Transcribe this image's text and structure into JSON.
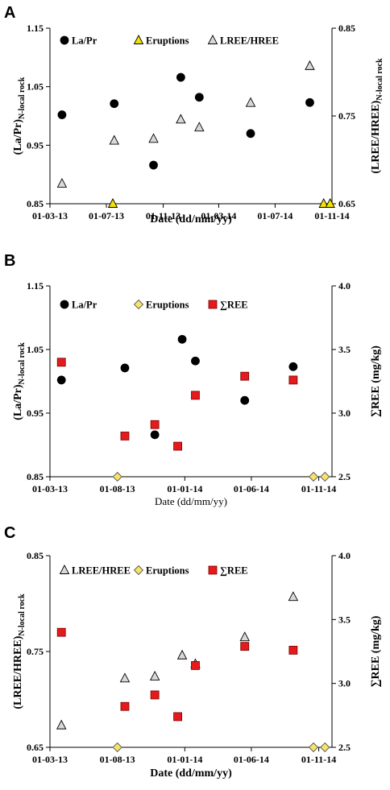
{
  "chart_data": [
    {
      "panel": "A",
      "type": "scatter",
      "xlabel": "Date (dd/mm/yy)",
      "ylabel_main": "(La/Pr)",
      "ylabel_sub": "N-local rock",
      "y2label_main": "(LREE/HREE)",
      "y2label_sub": "N-local rock",
      "xlim": [
        "2013-03-01",
        "2014-11-01"
      ],
      "xticks": [
        "01-03-13",
        "01-07-13",
        "01-11-13",
        "01-03-14",
        "01-07-14",
        "01-11-14"
      ],
      "ylim": [
        0.85,
        1.15
      ],
      "yticks": [
        "0.85",
        "0.95",
        "1.05",
        "1.15"
      ],
      "y2lim": [
        0.65,
        0.85
      ],
      "y2ticks": [
        "0.65",
        "0.75",
        "0.85"
      ],
      "legend": [
        "La/Pr",
        "Eruptions",
        "LREE/HREE"
      ],
      "series": [
        {
          "name": "La/Pr",
          "axis": "left",
          "marker": "circle",
          "color": "#000000",
          "points": [
            [
              "2013-03-27",
              1.002
            ],
            [
              "2013-07-18",
              1.021
            ],
            [
              "2013-10-11",
              0.916
            ],
            [
              "2013-12-09",
              1.066
            ],
            [
              "2014-01-18",
              1.032
            ],
            [
              "2014-05-09",
              0.97
            ],
            [
              "2014-09-14",
              1.023
            ]
          ]
        },
        {
          "name": "Eruptions",
          "axis": "left",
          "marker": "triangle",
          "color": "#f2e200",
          "points": [
            [
              "2013-07-15",
              0.85
            ],
            [
              "2014-10-14",
              0.85
            ],
            [
              "2014-10-28",
              0.85
            ]
          ]
        },
        {
          "name": "LREE/HREE",
          "axis": "right",
          "marker": "triangle",
          "color": "#d9d9d9",
          "points": [
            [
              "2013-03-27",
              0.673
            ],
            [
              "2013-07-18",
              0.722
            ],
            [
              "2013-10-11",
              0.724
            ],
            [
              "2013-12-09",
              0.746
            ],
            [
              "2014-01-18",
              0.737
            ],
            [
              "2014-05-09",
              0.765
            ],
            [
              "2014-09-14",
              0.807
            ]
          ]
        }
      ]
    },
    {
      "panel": "B",
      "type": "scatter",
      "xlabel": "Date (dd/mm/yy)",
      "ylabel_main": "(La/Pr)",
      "ylabel_sub": "N-local rock",
      "y2label_main": "∑REE (mg/kg)",
      "xlim": [
        "2013-03-01",
        "2014-12-01"
      ],
      "xticks": [
        "01-03-13",
        "01-08-13",
        "01-01-14",
        "01-06-14",
        "01-11-14"
      ],
      "ylim": [
        0.85,
        1.15
      ],
      "yticks": [
        "0.85",
        "0.95",
        "1.05",
        "1.15"
      ],
      "y2lim": [
        2.5,
        4.0
      ],
      "y2ticks": [
        "2.5",
        "3.0",
        "3.5",
        "4.0"
      ],
      "legend": [
        "La/Pr",
        "Eruptions",
        "∑REE"
      ],
      "series": [
        {
          "name": "La/Pr",
          "axis": "left",
          "marker": "circle",
          "color": "#000000",
          "points": [
            [
              "2013-03-27",
              1.002
            ],
            [
              "2013-08-18",
              1.021
            ],
            [
              "2013-10-25",
              0.916
            ],
            [
              "2013-12-26",
              1.066
            ],
            [
              "2014-01-25",
              1.032
            ],
            [
              "2014-05-17",
              0.97
            ],
            [
              "2014-09-04",
              1.023
            ]
          ]
        },
        {
          "name": "Eruptions",
          "axis": "left",
          "marker": "diamond",
          "color": "#f5e36a",
          "points": [
            [
              "2013-08-01",
              0.85
            ],
            [
              "2014-10-20",
              0.85
            ],
            [
              "2014-11-15",
              0.85
            ]
          ]
        },
        {
          "name": "∑REE",
          "axis": "right",
          "marker": "square",
          "color": "#e41a1c",
          "points": [
            [
              "2013-03-27",
              3.4
            ],
            [
              "2013-08-18",
              2.82
            ],
            [
              "2013-10-25",
              2.91
            ],
            [
              "2013-12-16",
              2.74
            ],
            [
              "2014-01-25",
              3.14
            ],
            [
              "2014-05-17",
              3.29
            ],
            [
              "2014-09-04",
              3.26
            ]
          ]
        }
      ]
    },
    {
      "panel": "C",
      "type": "scatter",
      "xlabel": "Date (dd/mm/yy)",
      "ylabel_main": "(LREE/HREE)",
      "ylabel_sub": "N-local rock",
      "y2label_main": "∑REE (mg/kg)",
      "xlim": [
        "2013-03-01",
        "2014-12-01"
      ],
      "xticks": [
        "01-03-13",
        "01-08-13",
        "01-01-14",
        "01-06-14",
        "01-11-14"
      ],
      "ylim": [
        0.65,
        0.85
      ],
      "yticks": [
        "0.65",
        "0.75",
        "0.85"
      ],
      "y2lim": [
        2.5,
        4.0
      ],
      "y2ticks": [
        "2.5",
        "3.0",
        "3.5",
        "4.0"
      ],
      "legend": [
        "LREE/HREE",
        "Eruptions",
        "∑REE"
      ],
      "series": [
        {
          "name": "LREE/HREE",
          "axis": "left",
          "marker": "triangle",
          "color": "#d9d9d9",
          "points": [
            [
              "2013-03-27",
              0.673
            ],
            [
              "2013-08-18",
              0.722
            ],
            [
              "2013-10-25",
              0.724
            ],
            [
              "2013-12-26",
              0.746
            ],
            [
              "2014-01-25",
              0.737
            ],
            [
              "2014-05-17",
              0.765
            ],
            [
              "2014-09-04",
              0.807
            ]
          ]
        },
        {
          "name": "Eruptions",
          "axis": "left",
          "marker": "diamond",
          "color": "#f5e36a",
          "points": [
            [
              "2013-08-01",
              0.65
            ],
            [
              "2014-10-20",
              0.65
            ],
            [
              "2014-11-15",
              0.65
            ]
          ]
        },
        {
          "name": "∑REE",
          "axis": "right",
          "marker": "square",
          "color": "#e41a1c",
          "points": [
            [
              "2013-03-27",
              3.4
            ],
            [
              "2013-08-18",
              2.82
            ],
            [
              "2013-10-25",
              2.91
            ],
            [
              "2013-12-16",
              2.74
            ],
            [
              "2014-01-25",
              3.14
            ],
            [
              "2014-05-17",
              3.29
            ],
            [
              "2014-09-04",
              3.26
            ]
          ]
        }
      ]
    }
  ]
}
